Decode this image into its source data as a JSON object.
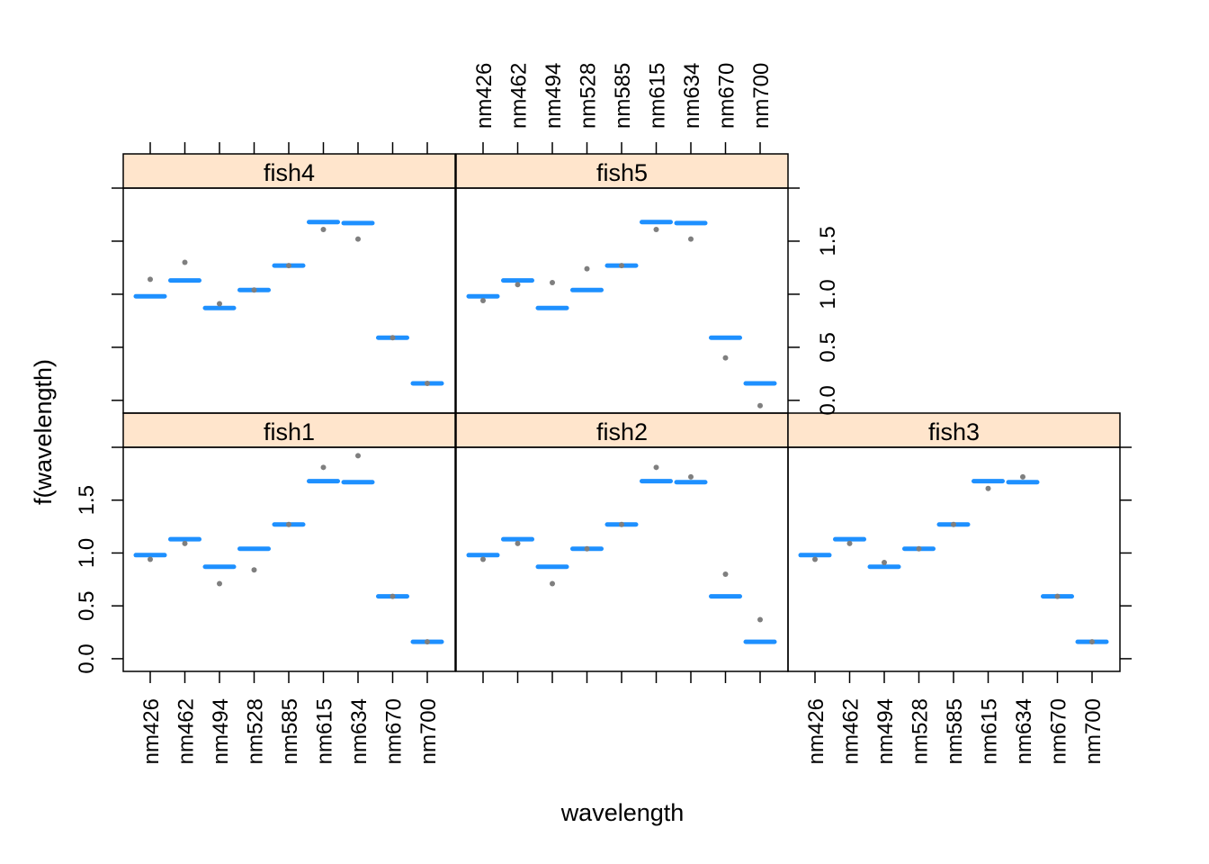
{
  "chart_data": {
    "type": "scatter",
    "xlabel": "wavelength",
    "ylabel": "f(wavelength)",
    "categories": [
      "nm426",
      "nm462",
      "nm494",
      "nm528",
      "nm585",
      "nm615",
      "nm634",
      "nm670",
      "nm700"
    ],
    "y_ticks": [
      "0.0",
      "0.5",
      "1.0",
      "1.5"
    ],
    "ylim": [
      -0.12,
      2.0
    ],
    "grid": false,
    "fitted": [
      0.98,
      1.13,
      0.87,
      1.04,
      1.27,
      1.68,
      1.67,
      0.59,
      0.16
    ],
    "panels": [
      {
        "name": "fish1",
        "observed": [
          0.94,
          1.09,
          0.71,
          0.84,
          1.27,
          1.81,
          1.92,
          0.59,
          0.16
        ]
      },
      {
        "name": "fish2",
        "observed": [
          0.94,
          1.09,
          0.71,
          1.04,
          1.27,
          1.81,
          1.72,
          0.8,
          0.37
        ]
      },
      {
        "name": "fish3",
        "observed": [
          0.94,
          1.09,
          0.91,
          1.04,
          1.27,
          1.61,
          1.72,
          0.59,
          0.16
        ]
      },
      {
        "name": "fish4",
        "observed": [
          1.14,
          1.3,
          0.91,
          1.04,
          1.27,
          1.61,
          1.52,
          0.59,
          0.16
        ]
      },
      {
        "name": "fish5",
        "observed": [
          0.94,
          1.09,
          1.11,
          1.24,
          1.27,
          1.61,
          1.52,
          0.4,
          -0.05
        ]
      }
    ],
    "colors": {
      "fitted": "#1e90ff",
      "observed": "#7f7f7f",
      "strip": "#ffe5cc",
      "axis": "#000000"
    }
  }
}
